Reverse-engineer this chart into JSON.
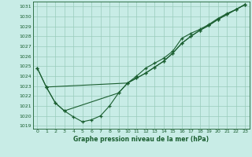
{
  "background_color": "#c8ece6",
  "grid_color": "#99ccbb",
  "line_color": "#1a5e30",
  "title": "Graphe pression niveau de la mer (hPa)",
  "xlim": [
    -0.5,
    23.5
  ],
  "ylim": [
    1018.7,
    1031.5
  ],
  "yticks": [
    1019,
    1020,
    1021,
    1022,
    1023,
    1024,
    1025,
    1026,
    1027,
    1028,
    1029,
    1030,
    1031
  ],
  "xticks": [
    0,
    1,
    2,
    3,
    4,
    5,
    6,
    7,
    8,
    9,
    10,
    11,
    12,
    13,
    14,
    15,
    16,
    17,
    18,
    19,
    20,
    21,
    22,
    23
  ],
  "series": [
    {
      "x": [
        0,
        1,
        10,
        11,
        12,
        13,
        14,
        15,
        16,
        17,
        18,
        19,
        20,
        21,
        22,
        23
      ],
      "y": [
        1024.8,
        1022.9,
        1023.3,
        1023.8,
        1024.3,
        1024.9,
        1025.5,
        1026.3,
        1027.3,
        1028.0,
        1028.6,
        1029.1,
        1029.7,
        1030.2,
        1030.7,
        1031.2
      ]
    },
    {
      "x": [
        0,
        1,
        2,
        3,
        4,
        5,
        6,
        7,
        8,
        9,
        10,
        11,
        12,
        13,
        14,
        15,
        16,
        17,
        18,
        19,
        20,
        21,
        22,
        23
      ],
      "y": [
        1024.8,
        1022.9,
        1021.3,
        1020.5,
        1019.9,
        1019.4,
        1019.6,
        1020.0,
        1021.0,
        1022.3,
        1023.3,
        1023.8,
        1024.3,
        1024.9,
        1025.5,
        1026.3,
        1027.3,
        1028.0,
        1028.6,
        1029.1,
        1029.7,
        1030.2,
        1030.7,
        1031.2
      ]
    },
    {
      "x": [
        1,
        2,
        3,
        9,
        10,
        11,
        12,
        13,
        14,
        15,
        16,
        17,
        18,
        19,
        20,
        21,
        22,
        23
      ],
      "y": [
        1022.9,
        1021.3,
        1020.5,
        1022.3,
        1023.3,
        1024.0,
        1024.8,
        1025.3,
        1025.8,
        1026.5,
        1027.8,
        1028.3,
        1028.7,
        1029.2,
        1029.8,
        1030.3,
        1030.7,
        1031.2
      ]
    }
  ]
}
